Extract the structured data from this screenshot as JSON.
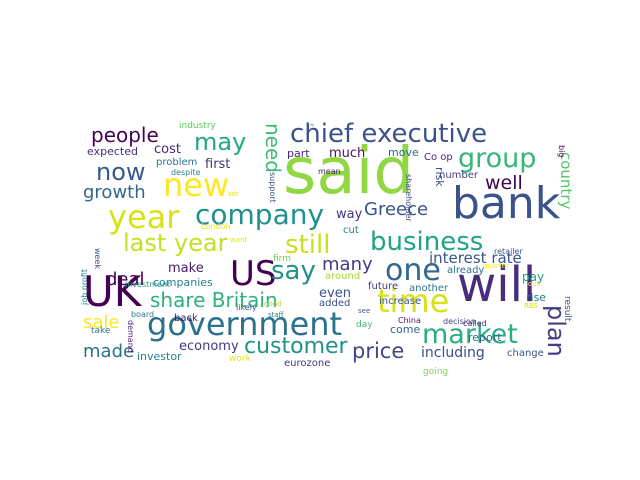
{
  "words": [
    {
      "text": "said",
      "color": "#90d743"
    },
    {
      "text": "bank",
      "color": "#3b528b"
    },
    {
      "text": "will",
      "color": "#472d7b"
    },
    {
      "text": "UK",
      "color": "#440154"
    },
    {
      "text": "government",
      "color": "#2c728e"
    },
    {
      "text": "company",
      "color": "#21918c"
    },
    {
      "text": "year",
      "color": "#d8e219"
    },
    {
      "text": "new",
      "color": "#fde725"
    },
    {
      "text": "US",
      "color": "#440154"
    },
    {
      "text": "chief executive",
      "color": "#3b528b"
    },
    {
      "text": "business",
      "color": "#20a386"
    },
    {
      "text": "market",
      "color": "#28ae80"
    },
    {
      "text": "time",
      "color": "#d8e219"
    },
    {
      "text": "one",
      "color": "#31688e"
    },
    {
      "text": "group",
      "color": "#35b779"
    },
    {
      "text": "last year",
      "color": "#c5e021"
    },
    {
      "text": "now",
      "color": "#38598c"
    },
    {
      "text": "may",
      "color": "#22a884"
    },
    {
      "text": "say",
      "color": "#21918c"
    },
    {
      "text": "still",
      "color": "#c8e020"
    },
    {
      "text": "people",
      "color": "#440154"
    },
    {
      "text": "need",
      "color": "#3fbc73"
    },
    {
      "text": "customer",
      "color": "#21918c"
    },
    {
      "text": "share Britain",
      "color": "#2db27d"
    },
    {
      "text": "plan",
      "color": "#433e85"
    },
    {
      "text": "well",
      "color": "#440154"
    },
    {
      "text": "deal",
      "color": "#440154"
    },
    {
      "text": "price",
      "color": "#414487"
    },
    {
      "text": "Greece",
      "color": "#3b528b"
    },
    {
      "text": "many",
      "color": "#443a83"
    },
    {
      "text": "growth",
      "color": "#31688e"
    },
    {
      "text": "sale",
      "color": "#fde725"
    },
    {
      "text": "made",
      "color": "#2c728e"
    },
    {
      "text": "country",
      "color": "#52c569"
    },
    {
      "text": "interest rate",
      "color": "#39568c"
    },
    {
      "text": "including",
      "color": "#3e4a89"
    },
    {
      "text": "first",
      "color": "#46327e"
    },
    {
      "text": "cost",
      "color": "#482878"
    },
    {
      "text": "make",
      "color": "#481a6c"
    },
    {
      "text": "economy",
      "color": "#453882"
    },
    {
      "text": "way",
      "color": "#46337f"
    },
    {
      "text": "even",
      "color": "#3b528b"
    },
    {
      "text": "much",
      "color": "#471365"
    },
    {
      "text": "pay",
      "color": "#1fa188"
    },
    {
      "text": "expected",
      "color": "#472c7a"
    },
    {
      "text": "risk",
      "color": "#3f4889"
    },
    {
      "text": "investor",
      "color": "#26828e"
    },
    {
      "text": "companies",
      "color": "#26828e"
    },
    {
      "text": "come",
      "color": "#32658e"
    },
    {
      "text": "report",
      "color": "#31688e"
    },
    {
      "text": "part",
      "color": "#482475"
    },
    {
      "text": "rise",
      "color": "#2a788e"
    },
    {
      "text": "back",
      "color": "#481769"
    },
    {
      "text": "cut",
      "color": "#2a768e"
    },
    {
      "text": "problem",
      "color": "#2c738e"
    },
    {
      "text": "move",
      "color": "#31688e"
    },
    {
      "text": "Co op",
      "color": "#482777"
    },
    {
      "text": "number",
      "color": "#424086"
    },
    {
      "text": "increase",
      "color": "#3b528b"
    },
    {
      "text": "added",
      "color": "#3e4c8a"
    },
    {
      "text": "future",
      "color": "#463480"
    },
    {
      "text": "another",
      "color": "#2a788e"
    },
    {
      "text": "around",
      "color": "#a2da37"
    },
    {
      "text": "already",
      "color": "#2e6e8e"
    },
    {
      "text": "change",
      "color": "#3b528b"
    },
    {
      "text": "eurozone",
      "color": "#453781"
    },
    {
      "text": "work",
      "color": "#e7e419"
    },
    {
      "text": "industry",
      "color": "#5ec962"
    },
    {
      "text": "investment",
      "color": "#1e9b8a"
    },
    {
      "text": "London",
      "color": "#e7e419"
    },
    {
      "text": "firm",
      "color": "#6ece58"
    },
    {
      "text": "support",
      "color": "#3b528b"
    },
    {
      "text": "mean",
      "color": "#482173"
    },
    {
      "text": "shareholder",
      "color": "#3e4989"
    },
    {
      "text": "retailer",
      "color": "#38598c"
    },
    {
      "text": "take",
      "color": "#2b748e"
    },
    {
      "text": "day",
      "color": "#3dbc74"
    },
    {
      "text": "going",
      "color": "#7ad151"
    },
    {
      "text": "board",
      "color": "#287d8e"
    },
    {
      "text": "week",
      "color": "#3e4a89"
    },
    {
      "text": "despite",
      "color": "#26828e"
    },
    {
      "text": "likely",
      "color": "#38598c"
    },
    {
      "text": "staff",
      "color": "#26828e"
    },
    {
      "text": "good",
      "color": "#b5de2b"
    },
    {
      "text": "want",
      "color": "#dde318"
    },
    {
      "text": "set",
      "color": "#dde318"
    },
    {
      "text": "China",
      "color": "#481769"
    },
    {
      "text": "decision",
      "color": "#404688"
    },
    {
      "text": "called",
      "color": "#472d7b"
    },
    {
      "text": "result",
      "color": "#3e4a89"
    },
    {
      "text": "job profit",
      "color": "#26828e"
    },
    {
      "text": "demand",
      "color": "#482475"
    },
    {
      "text": "see",
      "color": "#3b528b"
    },
    {
      "text": "RBS",
      "color": "#d2e21b"
    },
    {
      "text": "big",
      "color": "#440154"
    },
    {
      "text": "quarter",
      "color": "#fde725"
    },
    {
      "text": "out",
      "color": "#fde725"
    },
    {
      "text": "r",
      "color": "#3b528b"
    }
  ]
}
